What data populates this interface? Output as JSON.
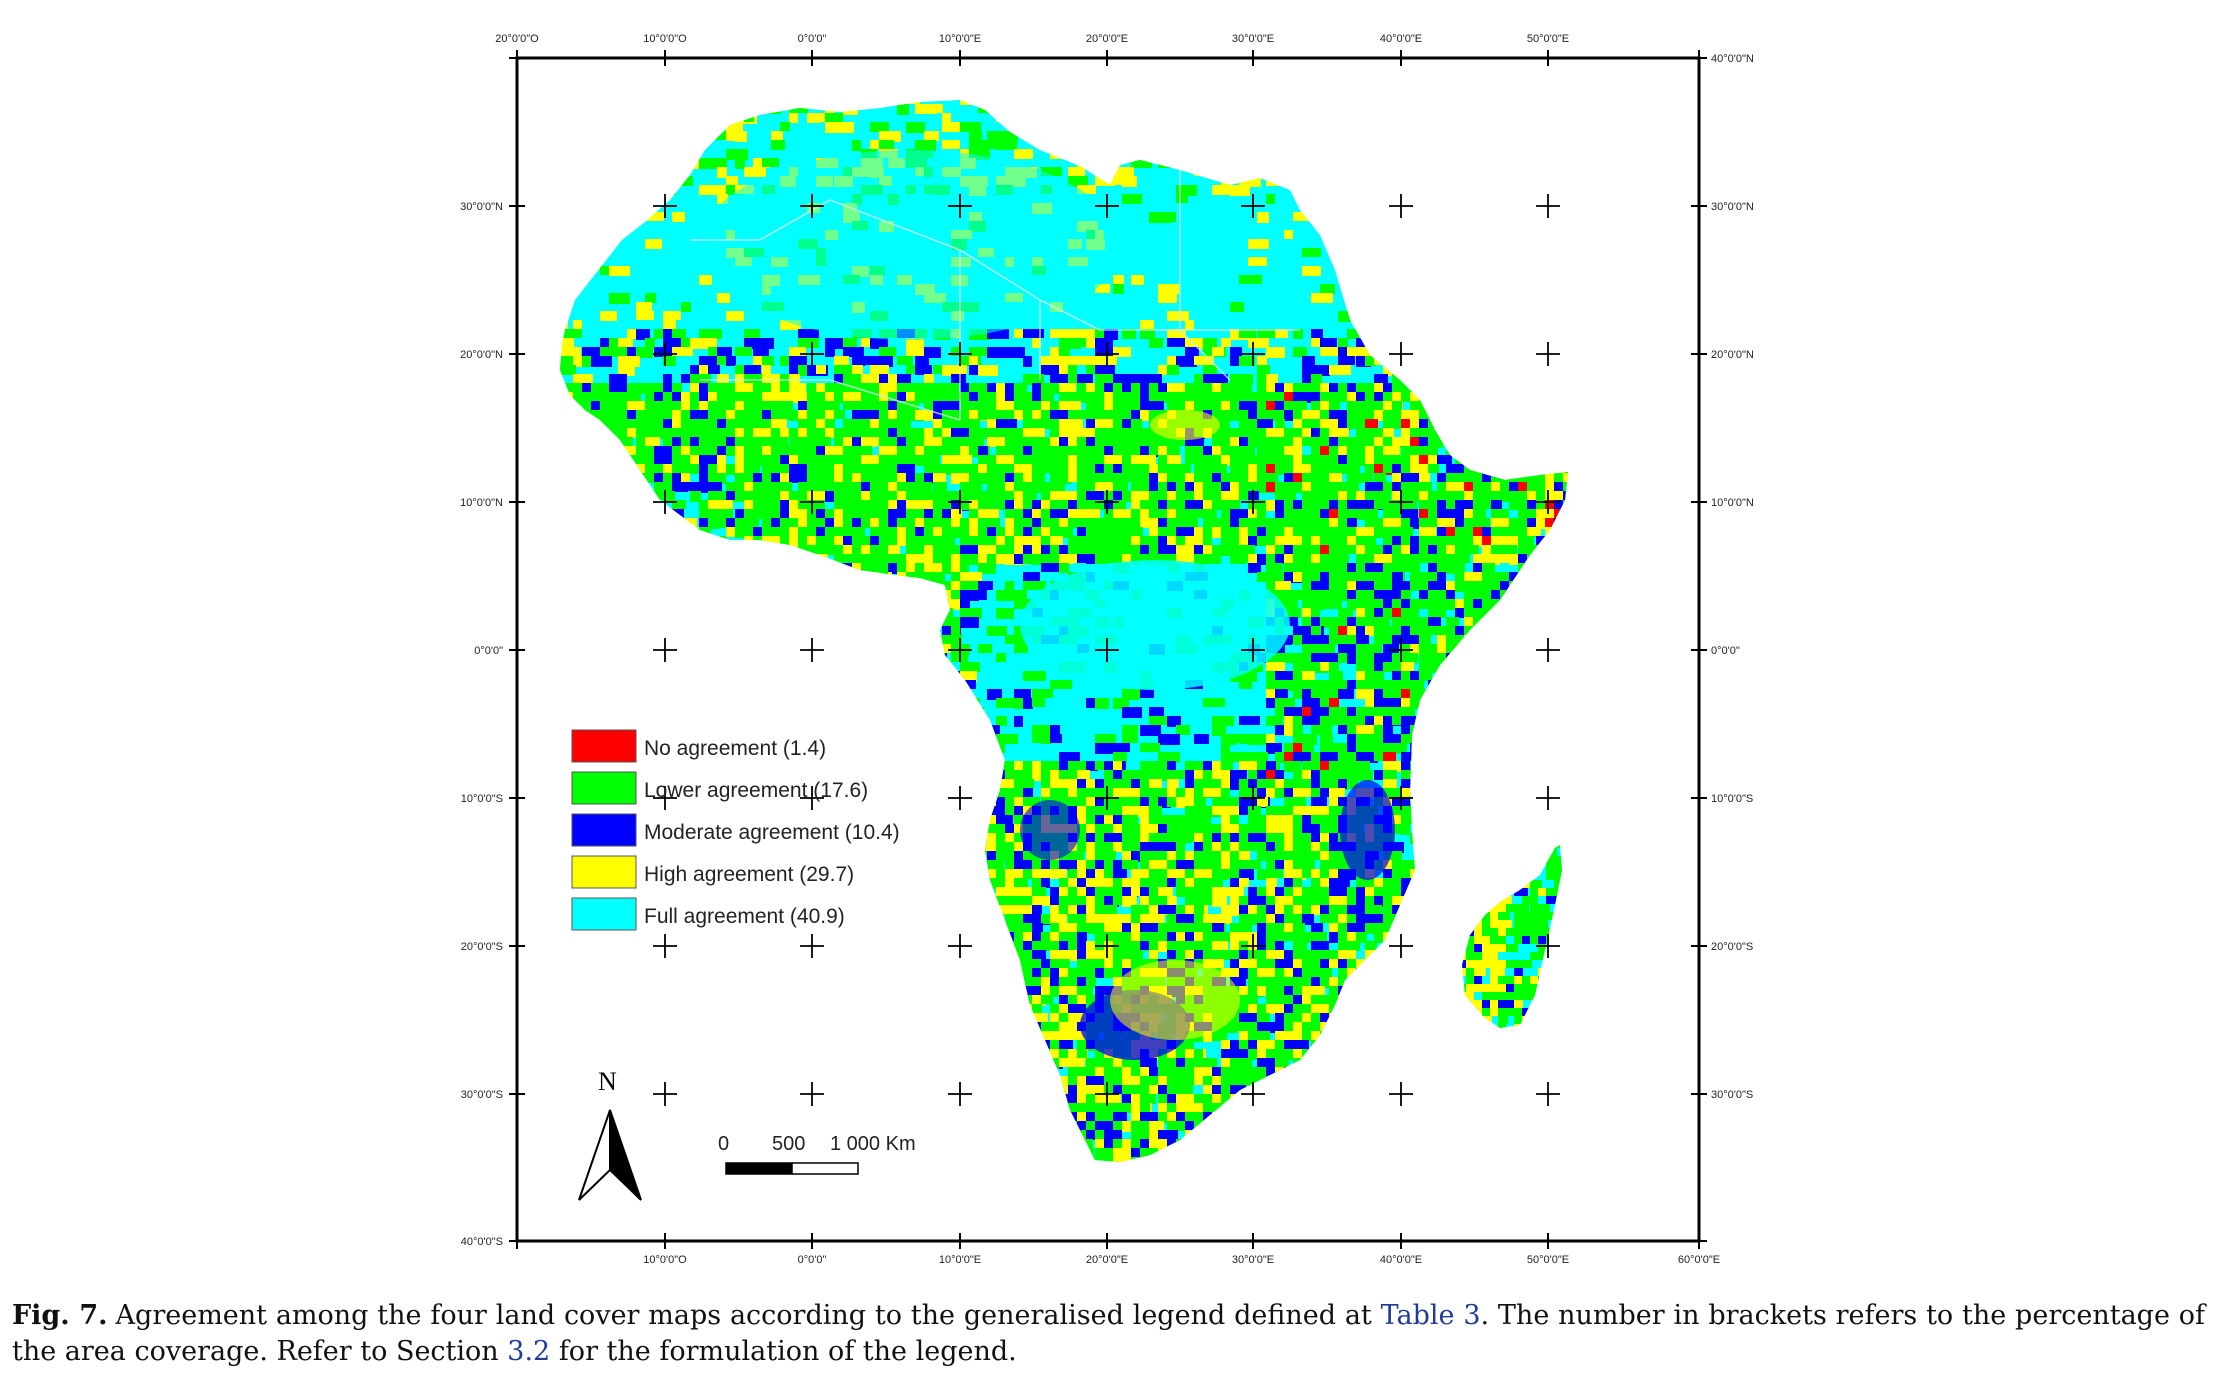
{
  "map": {
    "top_lon_labels": [
      "20°0'0\"O",
      "10°0'0\"O",
      "0°0'0\"",
      "10°0'0\"E",
      "20°0'0\"E",
      "30°0'0\"E",
      "40°0'0\"E",
      "50°0'0\"E"
    ],
    "bottom_lon_labels": [
      "10°0'0\"O",
      "0°0'0\"",
      "10°0'0\"E",
      "20°0'0\"E",
      "30°0'0\"E",
      "40°0'0\"E",
      "50°0'0\"E",
      "60°0'0\"E"
    ],
    "left_lat_labels": [
      "30°0'0\"N",
      "20°0'0\"N",
      "10°0'0\"N",
      "0°0'0\"",
      "10°0'0\"S",
      "20°0'0\"S",
      "30°0'0\"S",
      "40°0'0\"S"
    ],
    "right_lat_labels": [
      "40°0'0\"N",
      "30°0'0\"N",
      "20°0'0\"N",
      "10°0'0\"N",
      "0°0'0\"",
      "10°0'0\"S",
      "20°0'0\"S",
      "30°0'0\"S"
    ],
    "north_arrow_label": "N",
    "scale_bar": {
      "label_0": "0",
      "label_500": "500",
      "label_1000": "1 000 Km"
    },
    "legend": [
      {
        "label": "No agreement (1.4)",
        "color": "#ff0000",
        "percent": 1.4
      },
      {
        "label": "Lower agreement (17.6)",
        "color": "#00ff00",
        "percent": 17.6
      },
      {
        "label": "Moderate agreement (10.4)",
        "color": "#0000ff",
        "percent": 10.4
      },
      {
        "label": "High agreement (29.7)",
        "color": "#ffff00",
        "percent": 29.7
      },
      {
        "label": "Full agreement (40.9)",
        "color": "#00ffff",
        "percent": 40.9
      }
    ]
  },
  "caption": {
    "fig_label": "Fig. 7.",
    "text_part1": "Agreement among the four land cover maps according to the generalised legend defined at ",
    "link_table": "Table 3",
    "text_part2": ". The number in brackets refers to the percentage of the area coverage. Refer to Section ",
    "link_section": "3.2",
    "text_part3": " for the formulation of the legend."
  }
}
